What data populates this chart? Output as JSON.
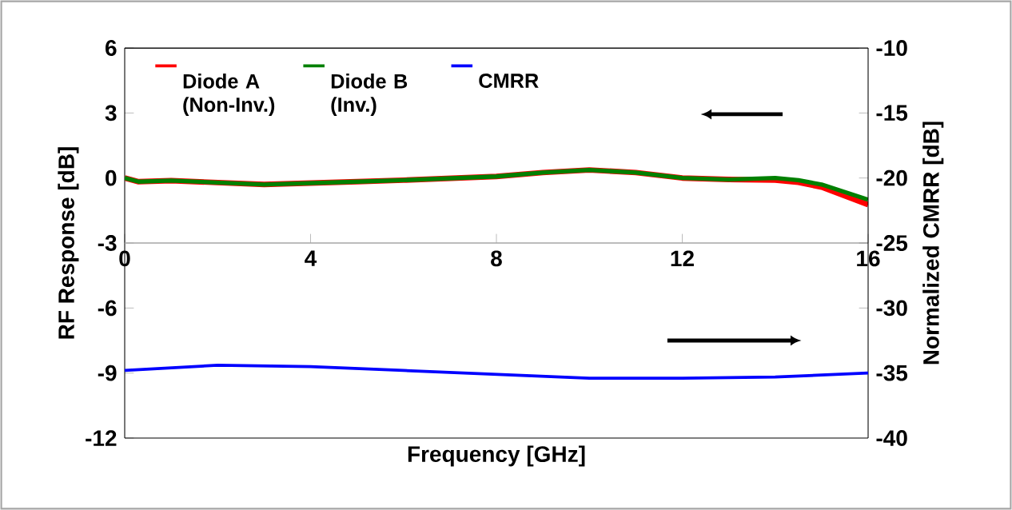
{
  "chart_data": {
    "type": "line",
    "xlabel": "Frequency [GHz]",
    "ylabel": "RF Response [dB]",
    "y2label": "Normalized CMRR [dB]",
    "xlim": [
      0,
      16
    ],
    "xticks": [
      0,
      4,
      8,
      12,
      16
    ],
    "ylim": [
      -12,
      6
    ],
    "yticks": [
      -12,
      -9,
      -6,
      -3,
      0,
      3,
      6
    ],
    "y2lim": [
      -40,
      -10
    ],
    "y2ticks": [
      -40,
      -35,
      -30,
      -25,
      -20,
      -15,
      -10
    ],
    "legend": "top left",
    "grid": false,
    "marker": "none",
    "line_style": "solid",
    "series": [
      {
        "name": "Diode A (Non-Inv.)",
        "color": "#ff0000",
        "x": [
          0,
          0.3,
          1,
          3,
          5,
          6,
          8,
          9,
          10,
          11,
          12,
          13,
          14,
          14.5,
          15,
          16
        ],
        "values": [
          0.0,
          -0.17,
          -0.12,
          -0.3,
          -0.17,
          -0.1,
          0.07,
          0.25,
          0.37,
          0.25,
          0.0,
          -0.07,
          -0.1,
          -0.2,
          -0.42,
          -1.23
        ]
      },
      {
        "name": "Diode B (Inv.)",
        "color": "#008000",
        "x": [
          0,
          0.3,
          1,
          3,
          5,
          6,
          8,
          9,
          10,
          11,
          12,
          13,
          14,
          14.5,
          15,
          16
        ],
        "values": [
          0.0,
          -0.17,
          -0.12,
          -0.3,
          -0.17,
          -0.1,
          0.07,
          0.25,
          0.37,
          0.25,
          0.0,
          -0.07,
          0.0,
          -0.1,
          -0.3,
          -1.0
        ]
      },
      {
        "name": "CMRR",
        "color": "#0000ff",
        "axis": "y2",
        "x": [
          0,
          2,
          4,
          6,
          8,
          10,
          12,
          14,
          16
        ],
        "values": [
          -34.8,
          -34.4,
          -34.5,
          -34.8,
          -35.1,
          -35.4,
          -35.4,
          -35.3,
          -35.0
        ]
      }
    ]
  }
}
